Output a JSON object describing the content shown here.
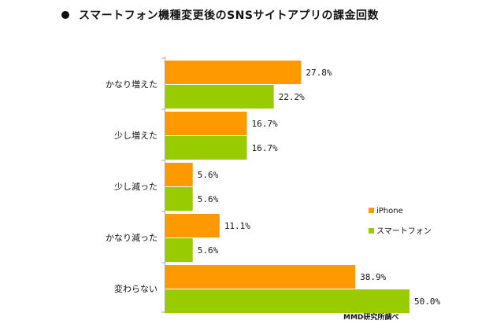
{
  "title": "スマートフォン機種変更後のSNSサイトアプリの課金回数",
  "source": "MMD研究所調べ",
  "chart_data": {
    "type": "bar",
    "orientation": "horizontal",
    "categories": [
      "かなり増えた",
      "少し増えた",
      "少し減った",
      "かなり減った",
      "変わらない"
    ],
    "series": [
      {
        "name": "iPhone",
        "color": "#ff9900",
        "values": [
          27.8,
          16.7,
          5.6,
          11.1,
          38.9
        ],
        "labels": [
          "27.8%",
          "16.7%",
          "5.6%",
          "11.1%",
          "38.9%"
        ]
      },
      {
        "name": "スマートフォン",
        "color": "#99cc00",
        "values": [
          22.2,
          16.7,
          5.6,
          5.6,
          50.0
        ],
        "labels": [
          "22.2%",
          "16.7%",
          "5.6%",
          "5.6%",
          "50.0%"
        ]
      }
    ],
    "xlim": [
      0,
      50
    ],
    "unit": "%",
    "legend_position": "right",
    "grid": false,
    "axis_color": "#aaaaaa"
  }
}
